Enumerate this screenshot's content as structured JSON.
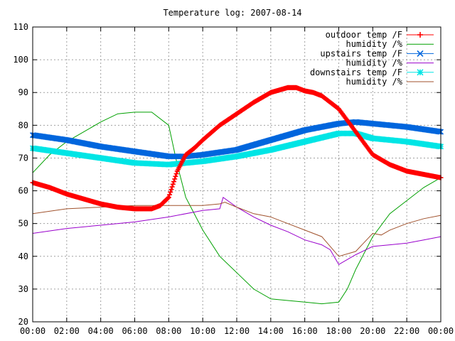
{
  "chart_data": {
    "type": "line",
    "title": "Temperature log: 2007-08-14",
    "xlabel": "",
    "ylabel": "",
    "ylim": [
      20,
      110
    ],
    "y_ticks": [
      "20",
      "30",
      "40",
      "50",
      "60",
      "70",
      "80",
      "90",
      "100",
      "110"
    ],
    "x_ticks": [
      "00:00",
      "02:00",
      "04:00",
      "06:00",
      "08:00",
      "10:00",
      "12:00",
      "14:00",
      "16:00",
      "18:00",
      "20:00",
      "22:00",
      "00:00"
    ],
    "xlim_hours": [
      0,
      24
    ],
    "grid": true,
    "legend_position": "top-right",
    "series": [
      {
        "name": "outdoor temp /F",
        "color": "#ff0000",
        "marker": "plus",
        "x": [
          0,
          1,
          2,
          3,
          4,
          5,
          6,
          7,
          7.5,
          8,
          8.5,
          9,
          9.5,
          10,
          11,
          12,
          13,
          14,
          15,
          15.5,
          16,
          16.5,
          17,
          18,
          19,
          20,
          21,
          22,
          23,
          24
        ],
        "y": [
          62.5,
          61,
          59,
          57.5,
          56,
          55,
          54.5,
          54.5,
          55.5,
          58,
          66,
          71,
          73,
          75.5,
          80,
          83.5,
          87,
          90,
          91.5,
          91.5,
          90.5,
          90,
          89,
          85,
          78,
          71,
          68,
          66,
          65,
          64
        ]
      },
      {
        "name": "humidity /%",
        "color": "#00a000",
        "marker": "none",
        "x": [
          0,
          1,
          2,
          3,
          4,
          5,
          6,
          7,
          8,
          8.5,
          9,
          10,
          11,
          12,
          13,
          14,
          15,
          16,
          17,
          18,
          18.5,
          19,
          20,
          21,
          22,
          23,
          24
        ],
        "y": [
          65.5,
          71,
          75,
          78,
          81,
          83.5,
          84,
          84,
          80,
          68,
          58,
          48,
          40,
          35,
          30,
          27,
          26.5,
          26,
          25.5,
          26,
          30,
          36,
          46,
          53,
          57,
          61,
          64
        ]
      },
      {
        "name": "upstairs temp /F",
        "color": "#0066dd",
        "marker": "x",
        "x": [
          0,
          2,
          4,
          6,
          8,
          9,
          10,
          12,
          14,
          16,
          18,
          19,
          20,
          22,
          24
        ],
        "y": [
          77,
          75.5,
          73.5,
          72,
          70.5,
          70.5,
          71,
          72.5,
          75.5,
          78.5,
          80.5,
          81,
          80.5,
          79.5,
          78
        ]
      },
      {
        "name": "humidity /%",
        "color": "#9900cc",
        "marker": "none",
        "x": [
          0,
          2,
          4,
          6,
          8,
          10,
          11,
          11.2,
          12,
          13,
          14,
          15,
          16,
          17,
          17.5,
          18,
          19,
          20,
          21,
          22,
          23,
          24
        ],
        "y": [
          47,
          48.5,
          49.5,
          50.5,
          52,
          54,
          54.5,
          58,
          55,
          52,
          49.5,
          47.5,
          45,
          43.5,
          42,
          37.5,
          40.5,
          43,
          43.5,
          44,
          45,
          46
        ]
      },
      {
        "name": "downstairs temp /F",
        "color": "#00e5e5",
        "marker": "star",
        "x": [
          0,
          2,
          4,
          6,
          8,
          9,
          10,
          12,
          14,
          16,
          18,
          19,
          20,
          22,
          24
        ],
        "y": [
          73,
          71.5,
          70,
          68.5,
          68,
          68.5,
          69,
          70.5,
          72.5,
          75,
          77.5,
          77.5,
          76,
          75,
          73.5
        ]
      },
      {
        "name": "humidity /%",
        "color": "#a0522d",
        "marker": "none",
        "x": [
          0,
          2,
          4,
          6,
          8,
          9,
          10,
          11,
          11.3,
          12,
          13,
          14,
          15,
          16,
          17,
          17.5,
          18,
          19,
          20,
          20.5,
          21,
          22,
          23,
          24
        ],
        "y": [
          53,
          54.5,
          55,
          55.5,
          55.5,
          55.5,
          55.5,
          56,
          56.5,
          55,
          53,
          52,
          50,
          48,
          46,
          43,
          40,
          41.5,
          47,
          46.5,
          48,
          50,
          51.5,
          52.5
        ]
      }
    ]
  }
}
